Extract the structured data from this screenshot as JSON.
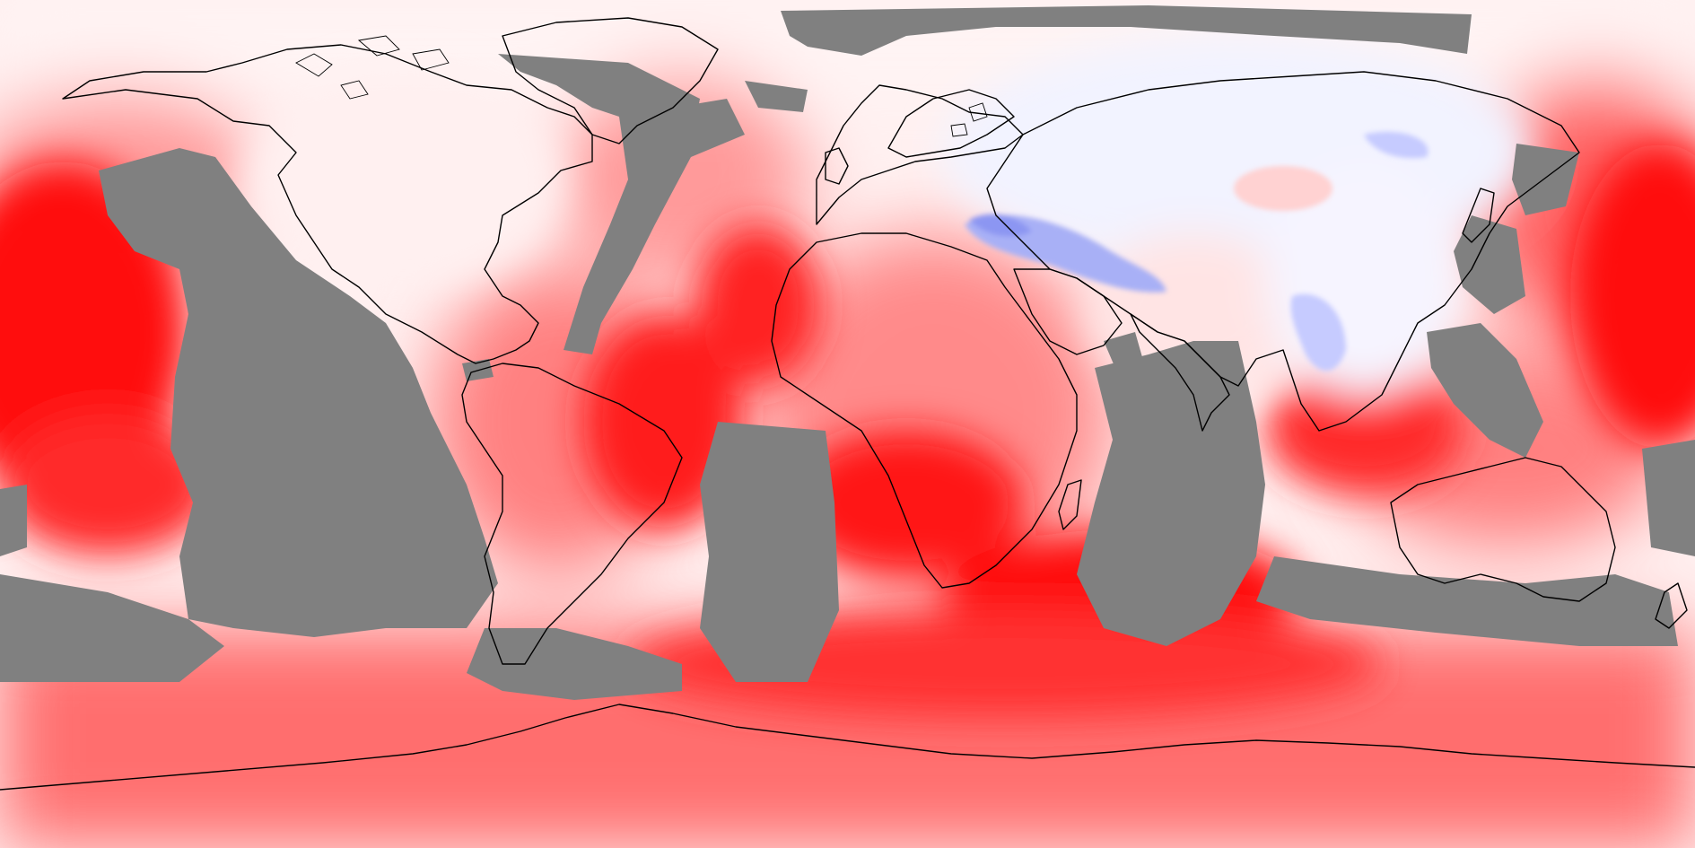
{
  "map": {
    "projection": "equirectangular",
    "extent": {
      "lon": [
        -180,
        180
      ],
      "lat": [
        -90,
        90
      ]
    },
    "colors": {
      "no_data": "#808080",
      "strong_positive": "#ff0d0d",
      "positive_high": "#ff3535",
      "positive_mid": "#ff6464",
      "positive_low": "#ff9a9a",
      "positive_faint": "#ffd2d2",
      "near_zero": "#fff0f0",
      "negative_faint": "#eef0ff",
      "negative_mid": "#c6cbff",
      "negative_strong": "#8c96f2",
      "coastline": "#000000"
    },
    "legend": "none",
    "title": ""
  }
}
